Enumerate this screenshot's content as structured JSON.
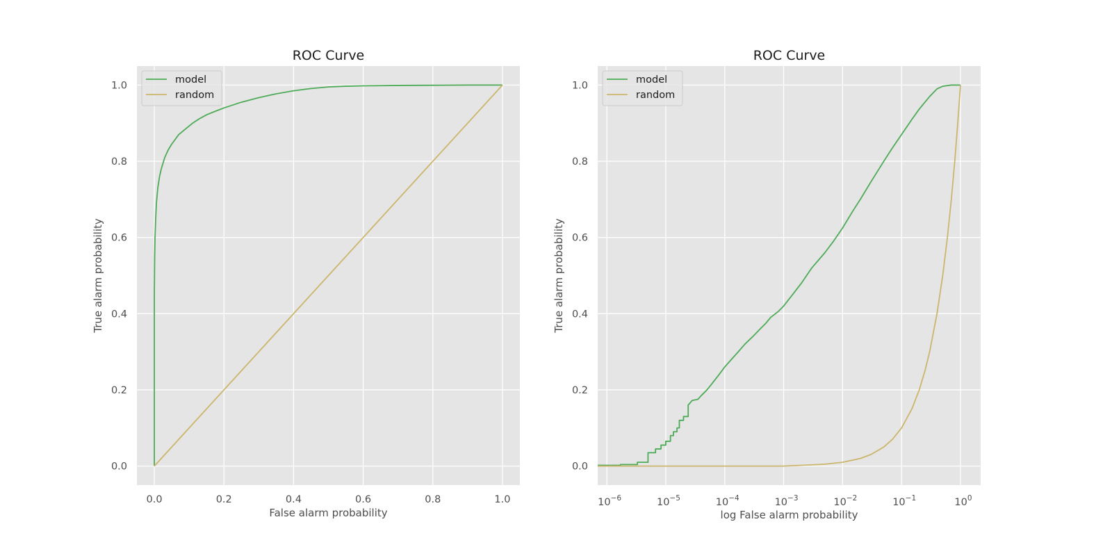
{
  "colors": {
    "model": "#4daa57",
    "random": "#ccb56b",
    "background": "#e5e5e5",
    "grid": "#ffffff"
  },
  "chart_data": [
    {
      "type": "line",
      "title": "ROC Curve",
      "xlabel": "False alarm probability",
      "ylabel": "True alarm probability",
      "xscale": "linear",
      "xlim": [
        -0.05,
        1.05
      ],
      "ylim": [
        -0.05,
        1.05
      ],
      "xticks": [
        0.0,
        0.2,
        0.4,
        0.6,
        0.8,
        1.0
      ],
      "xtick_labels": [
        "0.0",
        "0.2",
        "0.4",
        "0.6",
        "0.8",
        "1.0"
      ],
      "yticks": [
        0.0,
        0.2,
        0.4,
        0.6,
        0.8,
        1.0
      ],
      "ytick_labels": [
        "0.0",
        "0.2",
        "0.4",
        "0.6",
        "0.8",
        "1.0"
      ],
      "legend_position": "top-left",
      "series": [
        {
          "name": "model",
          "color": "#4daa57",
          "x": [
            0,
            0,
            0.001,
            0.002,
            0.004,
            0.006,
            0.008,
            0.01,
            0.015,
            0.02,
            0.03,
            0.04,
            0.05,
            0.07,
            0.09,
            0.11,
            0.13,
            0.15,
            0.18,
            0.2,
            0.25,
            0.3,
            0.35,
            0.4,
            0.45,
            0.5,
            0.55,
            0.6,
            0.7,
            0.8,
            0.9,
            1.0
          ],
          "y": [
            0,
            0.45,
            0.55,
            0.6,
            0.65,
            0.69,
            0.71,
            0.73,
            0.76,
            0.78,
            0.81,
            0.83,
            0.845,
            0.87,
            0.885,
            0.9,
            0.912,
            0.922,
            0.933,
            0.94,
            0.955,
            0.967,
            0.977,
            0.985,
            0.991,
            0.995,
            0.997,
            0.998,
            0.999,
            0.9995,
            1.0,
            1.0
          ]
        },
        {
          "name": "random",
          "color": "#ccb56b",
          "x": [
            0,
            1
          ],
          "y": [
            0,
            1
          ]
        }
      ]
    },
    {
      "type": "line",
      "title": "ROC Curve",
      "xlabel": "log False alarm probability",
      "ylabel": "True alarm probability",
      "xscale": "log",
      "xlim": [
        7e-07,
        2.2
      ],
      "ylim": [
        -0.05,
        1.05
      ],
      "xticks": [
        1e-06,
        1e-05,
        0.0001,
        0.001,
        0.01,
        0.1,
        1
      ],
      "xtick_bases": [
        "10",
        "10",
        "10",
        "10",
        "10",
        "10",
        "10"
      ],
      "xtick_exponents": [
        "−6",
        "−5",
        "−4",
        "−3",
        "−2",
        "−1",
        "0"
      ],
      "yticks": [
        0.0,
        0.2,
        0.4,
        0.6,
        0.8,
        1.0
      ],
      "ytick_labels": [
        "0.0",
        "0.2",
        "0.4",
        "0.6",
        "0.8",
        "1.0"
      ],
      "legend_position": "top-left",
      "series": [
        {
          "name": "model",
          "color": "#4daa57",
          "x": [
            7e-07,
            1.7e-06,
            1.7e-06,
            3.3e-06,
            3.3e-06,
            5e-06,
            5e-06,
            6.7e-06,
            6.7e-06,
            8.3e-06,
            8.3e-06,
            1e-05,
            1e-05,
            1.2e-05,
            1.2e-05,
            1.35e-05,
            1.35e-05,
            1.55e-05,
            1.55e-05,
            1.7e-05,
            1.7e-05,
            2e-05,
            2e-05,
            2.4e-05,
            2.4e-05,
            2.8e-05,
            3.5e-05,
            4e-05,
            5e-05,
            6e-05,
            8e-05,
            0.0001,
            0.00013,
            0.00017,
            0.00022,
            0.0003,
            0.0004,
            0.0005,
            0.0006,
            0.0008,
            0.001,
            0.0015,
            0.002,
            0.003,
            0.005,
            0.007,
            0.01,
            0.015,
            0.02,
            0.03,
            0.05,
            0.07,
            0.1,
            0.15,
            0.2,
            0.3,
            0.4,
            0.5,
            0.7,
            1.0
          ],
          "y": [
            0.002,
            0.002,
            0.004,
            0.004,
            0.01,
            0.01,
            0.035,
            0.035,
            0.045,
            0.045,
            0.055,
            0.055,
            0.065,
            0.065,
            0.08,
            0.08,
            0.09,
            0.09,
            0.1,
            0.1,
            0.12,
            0.12,
            0.13,
            0.13,
            0.16,
            0.172,
            0.175,
            0.185,
            0.2,
            0.215,
            0.24,
            0.26,
            0.28,
            0.3,
            0.32,
            0.34,
            0.36,
            0.375,
            0.39,
            0.405,
            0.42,
            0.455,
            0.48,
            0.52,
            0.56,
            0.59,
            0.625,
            0.67,
            0.7,
            0.745,
            0.8,
            0.835,
            0.87,
            0.91,
            0.937,
            0.97,
            0.99,
            0.997,
            1.0,
            1.0
          ]
        },
        {
          "name": "random",
          "color": "#ccb56b",
          "x": [
            7e-07,
            1e-06,
            1e-05,
            0.0001,
            0.001,
            0.002,
            0.005,
            0.01,
            0.02,
            0.03,
            0.05,
            0.07,
            0.1,
            0.15,
            0.2,
            0.25,
            0.3,
            0.4,
            0.5,
            0.6,
            0.7,
            0.8,
            0.9,
            1.0
          ],
          "y": [
            0,
            0,
            0,
            0,
            0,
            0.002,
            0.005,
            0.01,
            0.02,
            0.03,
            0.05,
            0.07,
            0.1,
            0.15,
            0.2,
            0.25,
            0.3,
            0.4,
            0.5,
            0.6,
            0.7,
            0.8,
            0.9,
            1.0
          ]
        }
      ]
    }
  ]
}
